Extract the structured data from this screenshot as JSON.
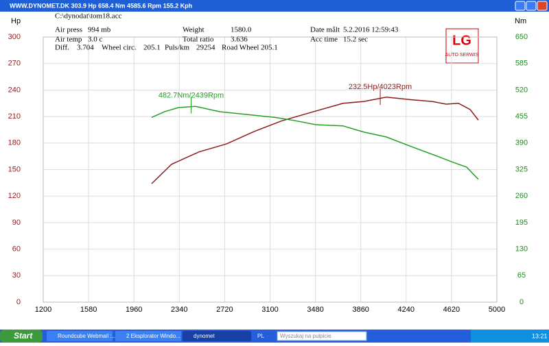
{
  "window": {
    "title": "WWW.DYNOMET.DK  303.9 Hp 658.4 Nm 4585.6 Rpm 155.2 Kph"
  },
  "info": {
    "file": "C:\\dynodat\\tom18.acc",
    "fields": [
      {
        "label": "Air press",
        "value": "994 mb"
      },
      {
        "label": "Air temp",
        "value": "3.0 c"
      },
      {
        "label": "Diff.",
        "value": "3.704"
      },
      {
        "label": "Wheel circ.",
        "value": "205.1"
      },
      {
        "label": "Puls/km",
        "value": "29254"
      },
      {
        "label": "Road Wheel",
        "value": "205.1"
      },
      {
        "label": "Weight",
        "value": "1580.0"
      },
      {
        "label": "Total ratio",
        "value": "3.636"
      },
      {
        "label": "Date målt",
        "value": "5.2.2016 12:59:43"
      },
      {
        "label": "Acc time",
        "value": "15.2 sec"
      }
    ]
  },
  "logo": {
    "mark": "LG",
    "text": "AUTO SERWIS"
  },
  "chart_data": {
    "type": "line",
    "y_label": "Hp",
    "y2_label": "Nm",
    "xlim": [
      1200,
      5000
    ],
    "xticks": [
      1200,
      1580,
      1960,
      2340,
      2720,
      3100,
      3480,
      3860,
      4240,
      4620,
      5000
    ],
    "ylim": [
      0,
      300
    ],
    "yticks": [
      0,
      30,
      60,
      90,
      120,
      150,
      180,
      210,
      240,
      270,
      300
    ],
    "y2lim": [
      0,
      650
    ],
    "y2ticks": [
      0,
      65,
      130,
      195,
      260,
      325,
      390,
      455,
      520,
      585,
      650
    ],
    "grid": true,
    "y_color": "#8b1a1a",
    "y2_color": "#1e8c1e",
    "series": [
      {
        "color": "#8b1a1a",
        "axis": "y",
        "x": [
          2108,
          2275,
          2505,
          2735,
          2965,
          3195,
          3425,
          3712,
          3885,
          4074,
          4287,
          4460,
          4575,
          4678,
          4776,
          4845
        ],
        "values": [
          134,
          156,
          170,
          179,
          193,
          205,
          214,
          225,
          227,
          232,
          229,
          227,
          224,
          225,
          218,
          206
        ]
      },
      {
        "color": "#22a022",
        "axis": "y2",
        "x": [
          2108,
          2218,
          2333,
          2476,
          2677,
          2907,
          3137,
          3310,
          3482,
          3712,
          3885,
          4074,
          4287,
          4517,
          4632,
          4747,
          4845
        ],
        "values": [
          453,
          467,
          477,
          480,
          467,
          460,
          453,
          445,
          435,
          432,
          417,
          405,
          381,
          356,
          343,
          331,
          301
        ]
      }
    ],
    "annotations": [
      {
        "text": "482.7Nm/2439Rpm",
        "x": 2439,
        "y": 482.7,
        "axis": "y2",
        "color": "#22a022"
      },
      {
        "text": "232.5Hp/4023Rpm",
        "x": 4023,
        "y": 232.5,
        "axis": "y",
        "color": "#8b1a1a"
      }
    ]
  },
  "taskbar": {
    "start": "Start",
    "tasks": [
      "Roundcube Webmail :...",
      "2 Eksplorator Windo...",
      "dynomet"
    ],
    "lang": "PL",
    "search": "Wyszukaj na pulpicie",
    "clock": "13:21"
  }
}
